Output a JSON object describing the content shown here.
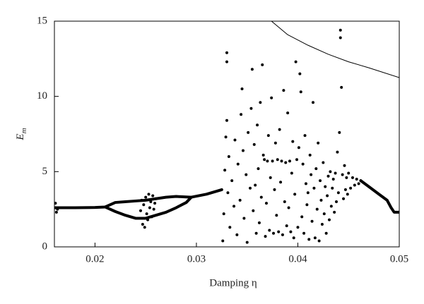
{
  "chart_data": {
    "type": "scatter",
    "xlabel": "Damping η",
    "ylabel": "E",
    "ylabel_subscript": "m",
    "xlim": [
      0.016,
      0.05
    ],
    "ylim": [
      0,
      15
    ],
    "xticks": [
      0.02,
      0.03,
      0.04,
      0.05
    ],
    "yticks": [
      0,
      5,
      10,
      15
    ],
    "series": [
      {
        "type": "scatter",
        "color": "#000000",
        "x": [
          0.0161,
          0.0162,
          0.0163,
          0.0243,
          0.0245,
          0.0246,
          0.0247,
          0.0248,
          0.0249,
          0.025,
          0.0251,
          0.0252,
          0.0253,
          0.0254,
          0.0255,
          0.0256,
          0.0257,
          0.0258,
          0.0259,
          0.026,
          0.0326,
          0.0327,
          0.0328,
          0.0329,
          0.033,
          0.033,
          0.033,
          0.0331,
          0.0332,
          0.0333,
          0.0335,
          0.0337,
          0.0338,
          0.034,
          0.0341,
          0.0343,
          0.0344,
          0.0345,
          0.0346,
          0.0347,
          0.0349,
          0.035,
          0.0351,
          0.0353,
          0.0354,
          0.0355,
          0.0356,
          0.0357,
          0.0358,
          0.0359,
          0.036,
          0.0361,
          0.0362,
          0.0363,
          0.0364,
          0.0365,
          0.0366,
          0.0367,
          0.0368,
          0.0369,
          0.037,
          0.0371,
          0.0372,
          0.0373,
          0.0374,
          0.0375,
          0.0376,
          0.0377,
          0.0378,
          0.0379,
          0.038,
          0.0381,
          0.0382,
          0.0383,
          0.0384,
          0.0385,
          0.0386,
          0.0387,
          0.0388,
          0.0389,
          0.039,
          0.0391,
          0.0392,
          0.0393,
          0.0394,
          0.0395,
          0.0396,
          0.0397,
          0.0398,
          0.0399,
          0.04,
          0.0401,
          0.0402,
          0.0403,
          0.0404,
          0.0405,
          0.0406,
          0.0407,
          0.0408,
          0.0409,
          0.041,
          0.0411,
          0.0412,
          0.0413,
          0.0414,
          0.0415,
          0.0416,
          0.0417,
          0.0418,
          0.0419,
          0.042,
          0.0421,
          0.0422,
          0.0423,
          0.0424,
          0.0425,
          0.0426,
          0.0427,
          0.0428,
          0.0429,
          0.043,
          0.0431,
          0.0432,
          0.0433,
          0.0434,
          0.0435,
          0.0436,
          0.0437,
          0.0438,
          0.0439,
          0.044,
          0.0441,
          0.0442,
          0.0442,
          0.0443,
          0.0444,
          0.0445,
          0.0446,
          0.0447,
          0.0448,
          0.0449,
          0.045,
          0.0452,
          0.0454,
          0.0456,
          0.0458,
          0.046,
          0.0462
        ],
        "values": [
          2.9,
          2.3,
          2.5,
          1.9,
          2.4,
          3.1,
          1.5,
          2.8,
          1.3,
          3.3,
          2.2,
          1.8,
          3.5,
          2.6,
          3.0,
          2.0,
          3.4,
          2.5,
          2.9,
          3.2,
          0.4,
          2.2,
          5.1,
          7.3,
          12.3,
          12.9,
          8.4,
          3.6,
          6.0,
          1.3,
          4.4,
          2.7,
          7.1,
          0.8,
          5.5,
          3.1,
          8.8,
          10.5,
          6.4,
          1.9,
          4.8,
          0.3,
          7.6,
          3.9,
          9.2,
          11.8,
          2.4,
          6.8,
          4.1,
          0.9,
          8.1,
          5.2,
          1.6,
          9.6,
          3.3,
          12.1,
          6.1,
          5.8,
          0.7,
          2.9,
          5.7,
          7.4,
          1.1,
          4.6,
          9.9,
          5.7,
          0.9,
          3.8,
          6.9,
          2.1,
          5.8,
          1.0,
          7.8,
          4.3,
          5.7,
          0.8,
          10.4,
          3.0,
          5.6,
          1.4,
          8.9,
          2.6,
          5.7,
          1.0,
          4.9,
          7.0,
          0.6,
          3.5,
          12.3,
          5.8,
          1.3,
          6.6,
          11.5,
          10.3,
          2.0,
          5.5,
          0.9,
          7.4,
          4.2,
          2.8,
          3.6,
          0.5,
          6.1,
          4.8,
          1.7,
          9.6,
          3.9,
          0.6,
          5.2,
          2.5,
          6.9,
          0.4,
          4.4,
          3.1,
          1.5,
          5.6,
          2.2,
          4.0,
          0.9,
          3.4,
          4.7,
          1.8,
          5.0,
          2.7,
          3.9,
          4.5,
          2.3,
          4.9,
          3.0,
          6.3,
          3.6,
          7.6,
          13.9,
          14.4,
          10.6,
          4.8,
          3.2,
          5.4,
          3.8,
          4.6,
          3.5,
          4.9,
          3.9,
          4.6,
          4.1,
          4.5,
          4.2,
          4.4
        ]
      },
      {
        "type": "branch",
        "color": "#000000",
        "x": [
          0.016,
          0.018,
          0.02,
          0.021,
          0.022,
          0.023,
          0.024,
          0.025,
          0.026,
          0.027,
          0.028,
          0.0295,
          0.031,
          0.0325
        ],
        "values": [
          2.6,
          2.6,
          2.62,
          2.65,
          2.95,
          3.0,
          3.05,
          3.1,
          3.2,
          3.3,
          3.35,
          3.3,
          3.5,
          3.8
        ]
      },
      {
        "type": "branch",
        "color": "#000000",
        "x": [
          0.021,
          0.022,
          0.023,
          0.024,
          0.025,
          0.026,
          0.027,
          0.028,
          0.029,
          0.0295
        ],
        "values": [
          2.65,
          2.35,
          2.1,
          1.9,
          1.9,
          2.1,
          2.3,
          2.6,
          2.95,
          3.3
        ]
      },
      {
        "type": "branch",
        "color": "#000000",
        "x": [
          0.0462,
          0.047,
          0.048,
          0.0488,
          0.0492,
          0.0495,
          0.05
        ],
        "values": [
          4.4,
          4.0,
          3.5,
          3.1,
          2.6,
          2.3,
          2.3
        ]
      },
      {
        "type": "line",
        "color": "#000000",
        "x": [
          0.0374,
          0.039,
          0.041,
          0.043,
          0.045,
          0.047,
          0.05
        ],
        "values": [
          15,
          14.1,
          13.4,
          12.8,
          12.3,
          11.9,
          11.25
        ]
      }
    ]
  }
}
